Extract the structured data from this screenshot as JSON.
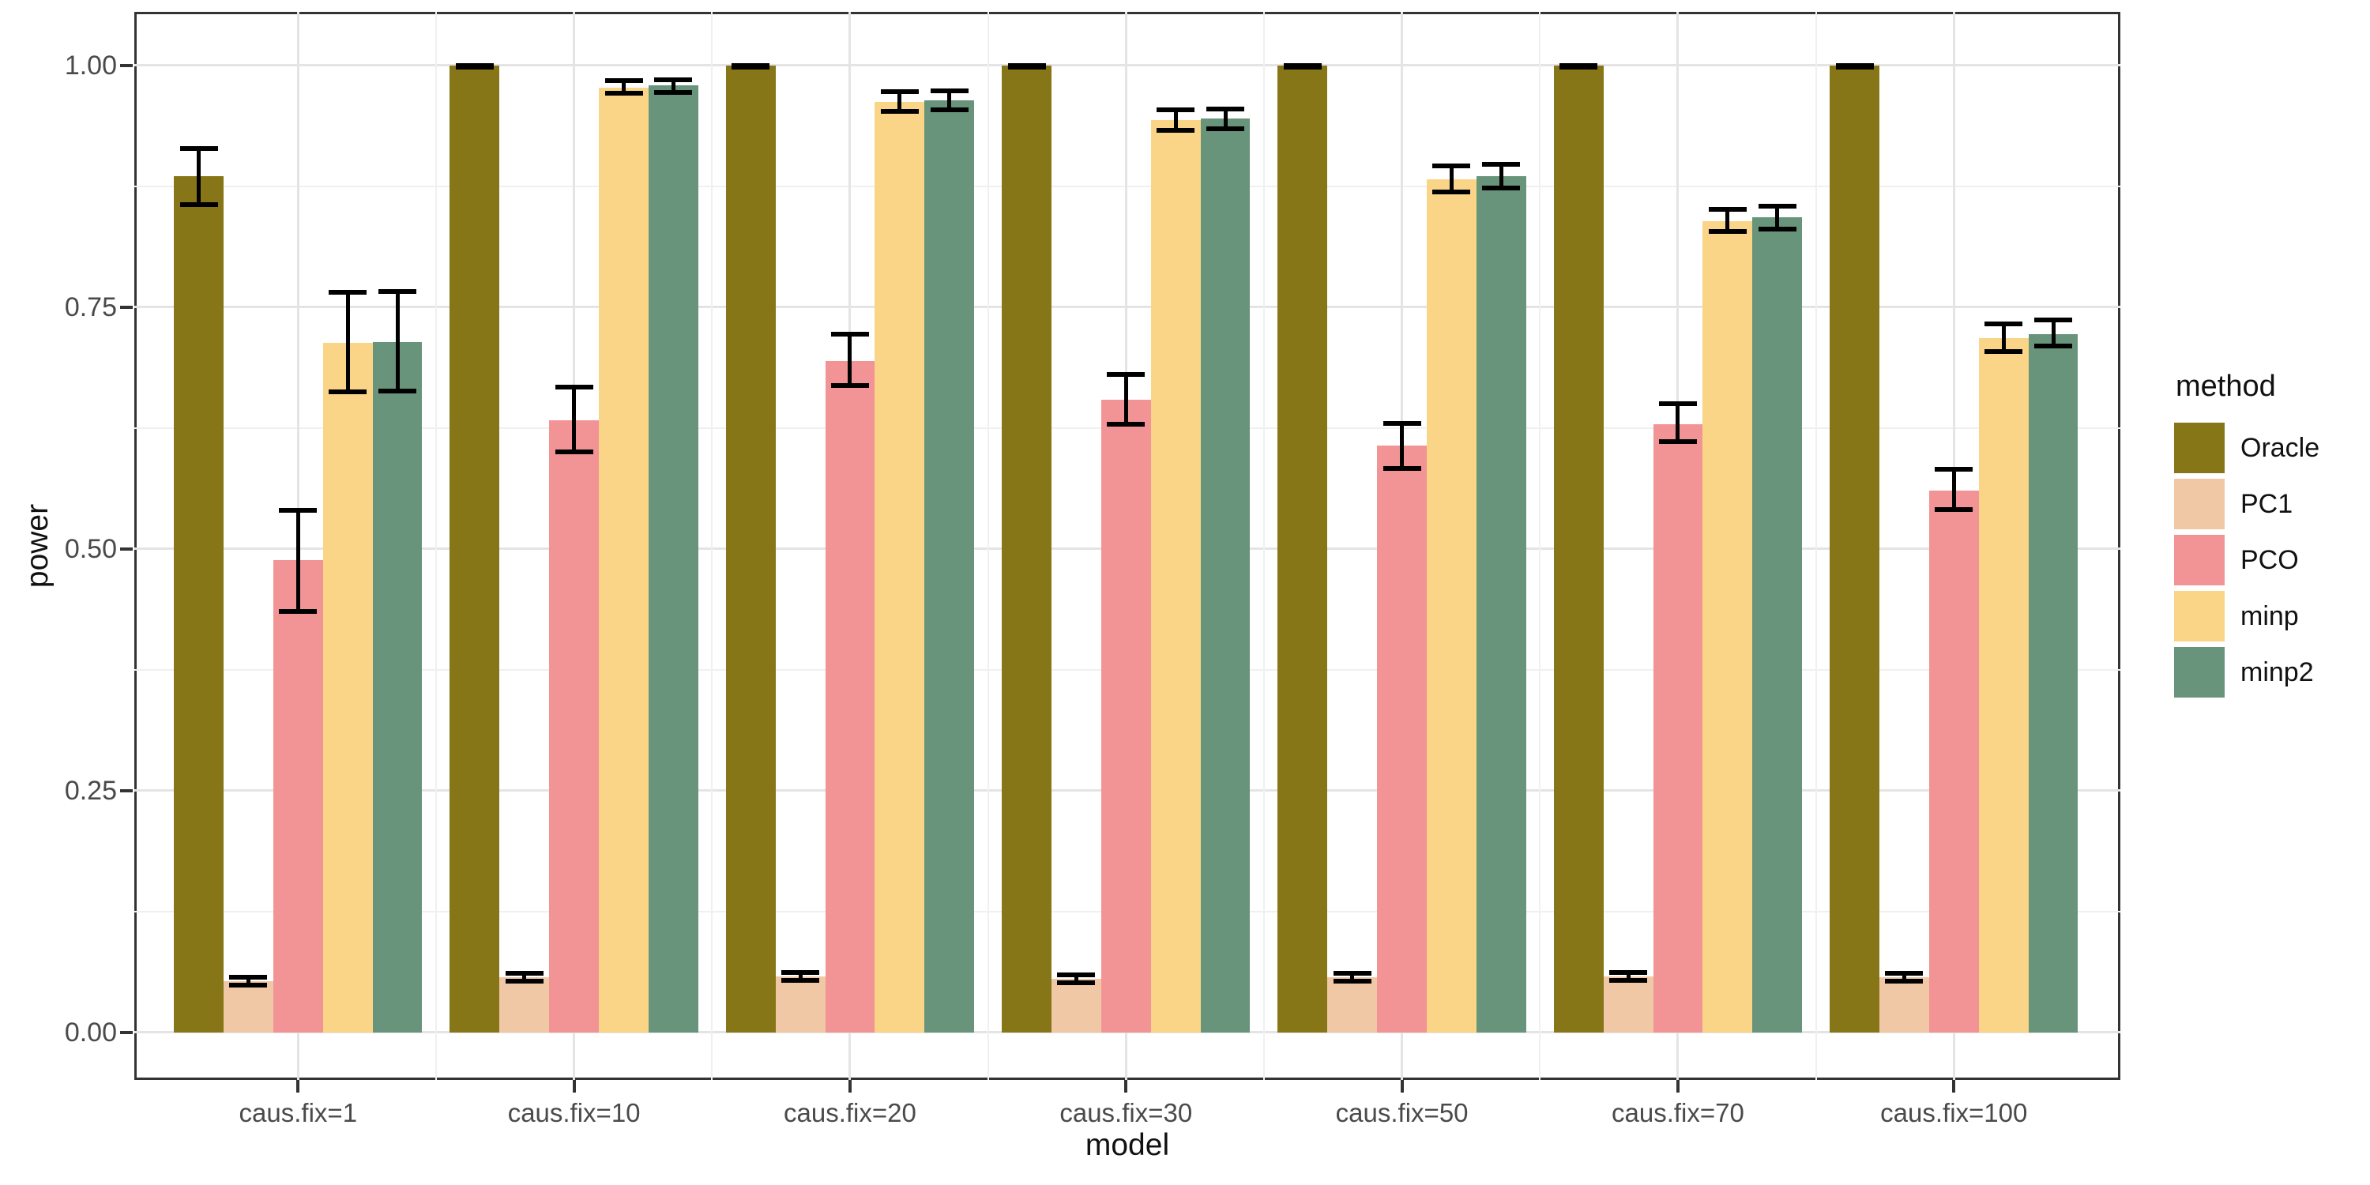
{
  "chart_data": {
    "type": "bar",
    "title": "",
    "xlabel": "model",
    "ylabel": "power",
    "legend_title": "method",
    "legend_position": "right",
    "grid": true,
    "ylim": [
      0,
      1.05
    ],
    "y_major_ticks": [
      0,
      0.25,
      0.5,
      0.75,
      1.0
    ],
    "y_tick_labels": [
      "0.00",
      "0.25",
      "0.50",
      "0.75",
      "1.00"
    ],
    "y_minor_ticks": [
      0.125,
      0.375,
      0.625,
      0.875
    ],
    "categories": [
      "caus.fix=1",
      "caus.fix=10",
      "caus.fix=20",
      "caus.fix=30",
      "caus.fix=50",
      "caus.fix=70",
      "caus.fix=100"
    ],
    "series": [
      {
        "name": "Oracle",
        "color": "#877618",
        "values": [
          0.885,
          1.0,
          1.0,
          1.0,
          1.0,
          1.0,
          1.0
        ],
        "ci_low": [
          0.856,
          0.998,
          0.998,
          0.998,
          0.998,
          0.998,
          0.998
        ],
        "ci_high": [
          0.914,
          1.0,
          1.0,
          1.0,
          1.0,
          1.0,
          1.0
        ]
      },
      {
        "name": "PC1",
        "color": "#F1C8A6",
        "values": [
          0.053,
          0.057,
          0.058,
          0.055,
          0.057,
          0.058,
          0.057
        ],
        "ci_low": [
          0.049,
          0.053,
          0.054,
          0.051,
          0.053,
          0.054,
          0.053
        ],
        "ci_high": [
          0.057,
          0.061,
          0.062,
          0.059,
          0.061,
          0.062,
          0.061
        ]
      },
      {
        "name": "PCO",
        "color": "#F29496",
        "values": [
          0.488,
          0.633,
          0.694,
          0.654,
          0.607,
          0.629,
          0.56
        ],
        "ci_low": [
          0.435,
          0.6,
          0.669,
          0.629,
          0.583,
          0.611,
          0.541
        ],
        "ci_high": [
          0.54,
          0.667,
          0.722,
          0.68,
          0.63,
          0.65,
          0.582
        ]
      },
      {
        "name": "minp",
        "color": "#FAD587",
        "values": [
          0.713,
          0.977,
          0.962,
          0.943,
          0.882,
          0.839,
          0.718
        ],
        "ci_low": [
          0.662,
          0.971,
          0.952,
          0.933,
          0.869,
          0.828,
          0.704
        ],
        "ci_high": [
          0.765,
          0.984,
          0.973,
          0.954,
          0.896,
          0.851,
          0.733
        ]
      },
      {
        "name": "minp2",
        "color": "#68947B",
        "values": [
          0.714,
          0.979,
          0.964,
          0.945,
          0.885,
          0.843,
          0.722
        ],
        "ci_low": [
          0.663,
          0.972,
          0.954,
          0.934,
          0.873,
          0.831,
          0.71
        ],
        "ci_high": [
          0.766,
          0.985,
          0.974,
          0.955,
          0.898,
          0.854,
          0.737
        ]
      }
    ]
  }
}
